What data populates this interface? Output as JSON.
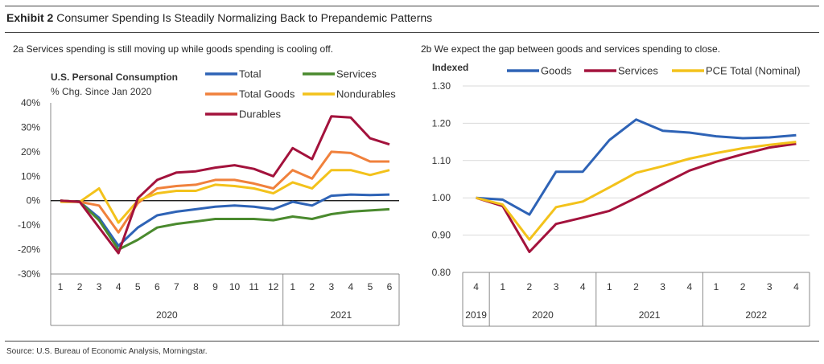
{
  "header": {
    "exhibit_label": "Exhibit 2",
    "title": "Consumer Spending Is Steadily Normalizing Back to Prepandemic Patterns"
  },
  "footer": {
    "source": "Source: U.S. Bureau of Economic Analysis, Morningstar."
  },
  "colors": {
    "total": "#2E63B6",
    "services_a": "#4A8A2E",
    "total_goods": "#F0813C",
    "nondurables": "#F3C21B",
    "durables": "#A3123C",
    "goods_b": "#2E63B6",
    "services_b": "#A3123C",
    "pce_total": "#F3C21B",
    "grid": "#d9d9d9"
  },
  "chart_data": [
    {
      "type": "line",
      "subtitle": "2a Services spending is still moving up while goods spending is cooling off.",
      "title": "U.S. Personal Consumption",
      "ylabel": "% Chg. Since Jan 2020",
      "xlabel": "",
      "ylim": [
        -30,
        40
      ],
      "yticks": [
        -30,
        -20,
        -10,
        0,
        10,
        20,
        30,
        40
      ],
      "ytick_suffix": "%",
      "grid": false,
      "zero_line": true,
      "legend_placement": "top",
      "categories": [
        "1",
        "2",
        "3",
        "4",
        "5",
        "6",
        "7",
        "8",
        "9",
        "10",
        "11",
        "12",
        "1",
        "2",
        "3",
        "4",
        "5",
        "6"
      ],
      "groups": [
        {
          "label": "2020",
          "count": 12
        },
        {
          "label": "2021",
          "count": 6
        }
      ],
      "series": [
        {
          "name": "Total",
          "color_key": "total",
          "values": [
            0,
            -0.5,
            -7,
            -18.5,
            -11,
            -6,
            -4.5,
            -3.5,
            -2.5,
            -2,
            -2.5,
            -3.5,
            -0.5,
            -2,
            2,
            2.5,
            2.3,
            2.5
          ]
        },
        {
          "name": "Services",
          "color_key": "services_a",
          "values": [
            0,
            -0.5,
            -8,
            -20,
            -16,
            -11,
            -9.5,
            -8.5,
            -7.5,
            -7.5,
            -7.5,
            -8,
            -6.5,
            -7.5,
            -5.5,
            -4.5,
            -4,
            -3.5
          ]
        },
        {
          "name": "Total Goods",
          "color_key": "total_goods",
          "values": [
            0,
            -0.5,
            -2,
            -13,
            -1,
            5,
            6,
            6.5,
            8.5,
            8.5,
            7,
            5,
            12.5,
            9,
            20,
            19.5,
            16,
            16
          ]
        },
        {
          "name": "Nondurables",
          "color_key": "nondurables",
          "values": [
            -0.5,
            -0.5,
            5,
            -9,
            0,
            3,
            4,
            4,
            6.5,
            6,
            5,
            3,
            7.5,
            5,
            12.5,
            12.5,
            10.5,
            12.5
          ]
        },
        {
          "name": "Durables",
          "color_key": "durables",
          "values": [
            0,
            -0.5,
            -11,
            -21.5,
            1,
            8.5,
            11.5,
            12,
            13.5,
            14.5,
            13,
            10,
            21.5,
            17,
            34.5,
            34,
            25.5,
            23
          ]
        }
      ]
    },
    {
      "type": "line",
      "subtitle": "2b We expect the gap between goods and services spending to close.",
      "title": "",
      "ylabel": "Indexed",
      "xlabel": "",
      "ylim": [
        0.8,
        1.3
      ],
      "yticks": [
        0.8,
        0.9,
        1.0,
        1.1,
        1.2,
        1.3
      ],
      "grid": true,
      "legend_placement": "top",
      "categories": [
        "4",
        "1",
        "2",
        "3",
        "4",
        "1",
        "2",
        "3",
        "4",
        "1",
        "2",
        "3",
        "4"
      ],
      "groups": [
        {
          "label": "2019",
          "count": 1
        },
        {
          "label": "2020",
          "count": 4
        },
        {
          "label": "2021",
          "count": 4
        },
        {
          "label": "2022",
          "count": 4
        }
      ],
      "series": [
        {
          "name": "Goods",
          "color_key": "goods_b",
          "values": [
            1.0,
            0.995,
            0.955,
            1.07,
            1.07,
            1.155,
            1.21,
            1.18,
            1.175,
            1.165,
            1.16,
            1.162,
            1.168
          ]
        },
        {
          "name": "Services",
          "color_key": "services_b",
          "values": [
            1.0,
            0.978,
            0.855,
            0.93,
            0.947,
            0.965,
            1.0,
            1.037,
            1.073,
            1.097,
            1.117,
            1.135,
            1.145
          ]
        },
        {
          "name": "PCE Total (Nominal)",
          "color_key": "pce_total",
          "values": [
            1.0,
            0.982,
            0.888,
            0.975,
            0.99,
            1.028,
            1.067,
            1.085,
            1.105,
            1.12,
            1.133,
            1.142,
            1.15
          ]
        }
      ]
    }
  ]
}
